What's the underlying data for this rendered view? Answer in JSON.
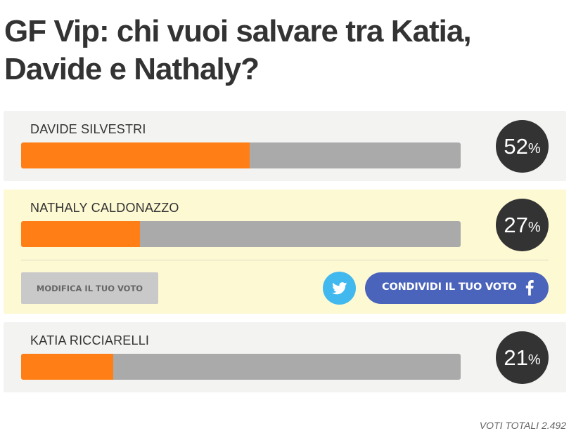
{
  "title": "GF Vip: chi vuoi salvare tra Katia, Davide e Nathaly?",
  "options": [
    {
      "name": "DAVIDE SILVESTRI",
      "percent": 52,
      "percent_label": "52",
      "selected": false
    },
    {
      "name": "NATHALY CALDONAZZO",
      "percent": 27,
      "percent_label": "27",
      "selected": true
    },
    {
      "name": "KATIA RICCIARELLI",
      "percent": 21,
      "percent_label": "21",
      "selected": false
    }
  ],
  "percent_sign": "%",
  "actions": {
    "modify_label": "MODIFICA IL TUO VOTO",
    "share_label": "CONDIVIDI IL TUO VOTO",
    "twitter_icon": "twitter-icon",
    "facebook_icon": "facebook-icon"
  },
  "total_votes": "VOTI TOTALI 2.492",
  "colors": {
    "bar_fill": "#ff7f16",
    "bar_track": "#aaaaaa",
    "circle": "#333333",
    "selected_bg": "#fdf9d3",
    "option_bg": "#f3f3f1",
    "twitter": "#41b9ef",
    "facebook": "#4a63bb"
  }
}
